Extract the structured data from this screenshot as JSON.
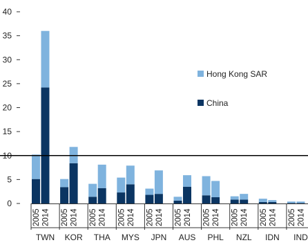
{
  "chart_data": {
    "type": "bar",
    "stacked": true,
    "title": "",
    "xlabel": "",
    "ylabel": "",
    "ylim": [
      0,
      40
    ],
    "yticks": [
      0,
      5,
      10,
      15,
      20,
      25,
      30,
      35,
      40
    ],
    "grid": false,
    "legend_position": "right",
    "reference_line": 10,
    "years": [
      "2005",
      "2014"
    ],
    "groups": [
      {
        "label": "TWN",
        "china": [
          5.1,
          24.2
        ],
        "hong_kong": [
          5.1,
          11.8
        ]
      },
      {
        "label": "KOR",
        "china": [
          3.4,
          8.4
        ],
        "hong_kong": [
          1.7,
          3.4
        ]
      },
      {
        "label": "THA",
        "china": [
          1.4,
          3.2
        ],
        "hong_kong": [
          2.7,
          4.9
        ]
      },
      {
        "label": "MYS",
        "china": [
          2.3,
          4.0
        ],
        "hong_kong": [
          3.1,
          3.9
        ]
      },
      {
        "label": "JPN",
        "china": [
          1.8,
          2.0
        ],
        "hong_kong": [
          1.3,
          4.9
        ]
      },
      {
        "label": "AUS",
        "china": [
          0.6,
          3.5
        ],
        "hong_kong": [
          0.8,
          2.4
        ]
      },
      {
        "label": "PHL",
        "china": [
          1.7,
          1.3
        ],
        "hong_kong": [
          4.0,
          3.4
        ]
      },
      {
        "label": "NZL",
        "china": [
          0.8,
          0.8
        ],
        "hong_kong": [
          0.7,
          1.2
        ]
      },
      {
        "label": "IDN",
        "china": [
          0.3,
          0.3
        ],
        "hong_kong": [
          0.7,
          0.4
        ]
      },
      {
        "label": "IND",
        "china": [
          0.1,
          0.1
        ],
        "hong_kong": [
          0.3,
          0.3
        ]
      }
    ],
    "series": [
      {
        "name": "Hong Kong SAR",
        "key": "hong_kong",
        "color": "#7fb3de"
      },
      {
        "name": "China",
        "key": "china",
        "color": "#0b3562"
      }
    ]
  }
}
